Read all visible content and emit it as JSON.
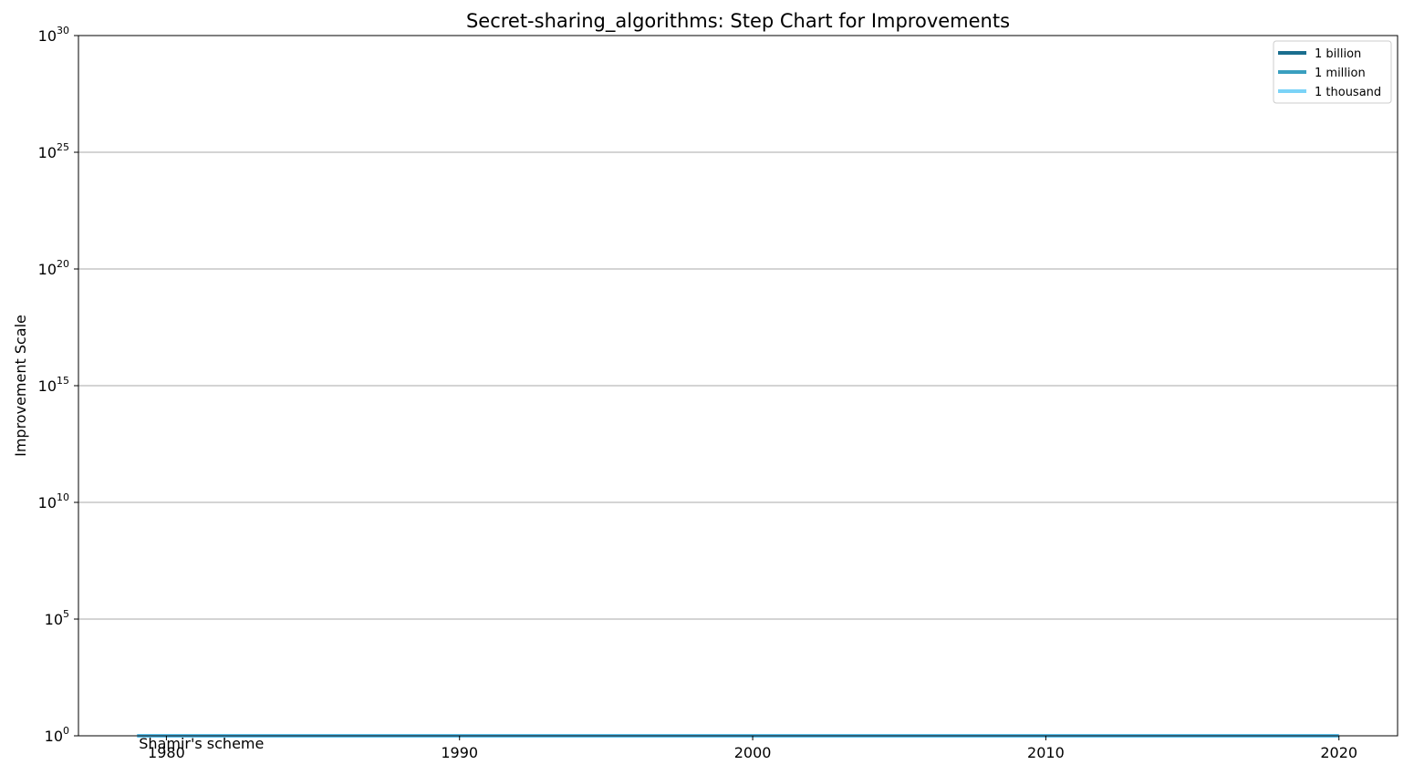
{
  "chart_data": {
    "type": "line",
    "title": "Secret-sharing_algorithms: Step Chart for Improvements",
    "xlabel": "",
    "ylabel": "Improvement Scale",
    "xlim": [
      1977,
      2022
    ],
    "ylim_exponent": [
      0,
      30
    ],
    "y_scale": "log",
    "grid": "y",
    "legend_position": "top-right",
    "x_ticks": [
      1980,
      1990,
      2000,
      2010,
      2020
    ],
    "y_ticks_exponent": [
      0,
      5,
      10,
      15,
      20,
      25,
      30
    ],
    "y_tick_base": "10",
    "reference_lines": [
      {
        "label": "1 billion",
        "value": 1000000000,
        "color": "#1a6e8e"
      },
      {
        "label": "1 million",
        "value": 1000000,
        "color": "#3a9fbf"
      },
      {
        "label": "1 thousand",
        "value": 1000,
        "color": "#7bd3f7"
      }
    ],
    "series": [
      {
        "x": [
          1979,
          2020
        ],
        "y": [
          1,
          1
        ],
        "color": "#5bc0eb"
      }
    ],
    "annotations": [
      {
        "text": "Shamir's scheme",
        "x": 1979,
        "y": 1
      }
    ]
  }
}
